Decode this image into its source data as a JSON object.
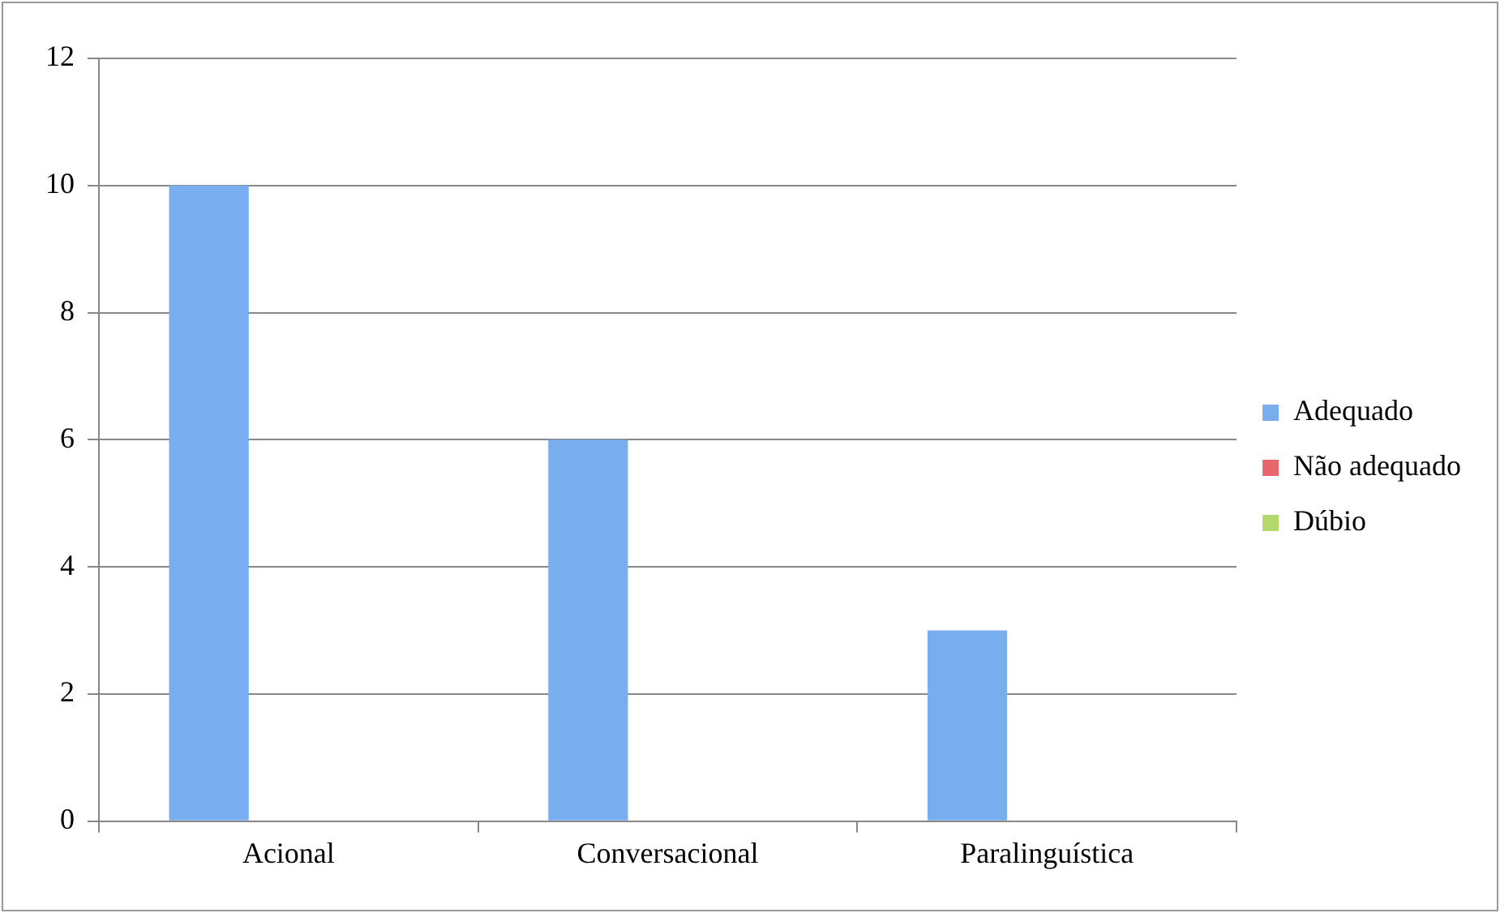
{
  "chart_data": {
    "type": "bar",
    "categories": [
      "Acional",
      "Conversacional",
      "Paralinguística"
    ],
    "series": [
      {
        "name": "Adequado",
        "color": "#78adf0",
        "values": [
          10,
          6,
          3
        ]
      },
      {
        "name": "Não adequado",
        "color": "#e8676a",
        "values": [
          0,
          0,
          0
        ]
      },
      {
        "name": "Dúbio",
        "color": "#b3d96c",
        "values": [
          0,
          0,
          0
        ]
      }
    ],
    "ylim": [
      0,
      12
    ],
    "yticks": [
      0,
      2,
      4,
      6,
      8,
      10,
      12
    ],
    "grid": "y",
    "legend": "right"
  }
}
